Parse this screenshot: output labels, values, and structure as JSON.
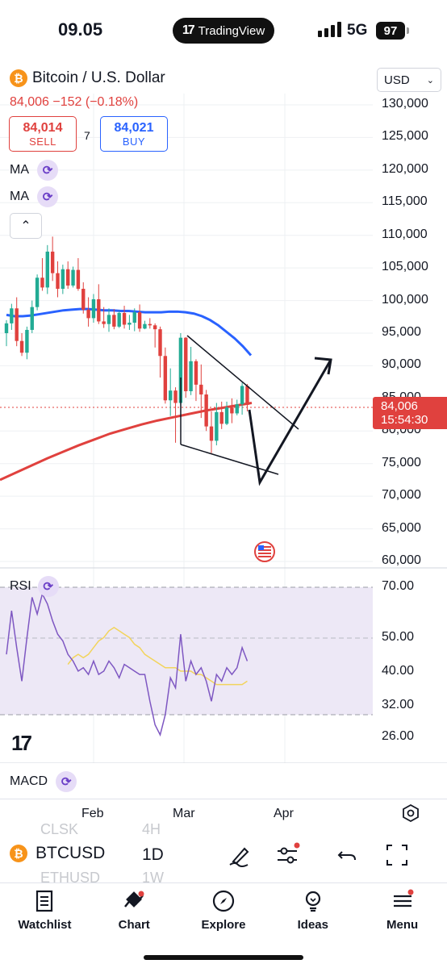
{
  "status": {
    "time": "09.05",
    "app": "TradingView",
    "network": "5G",
    "battery": "97"
  },
  "header": {
    "symbol_name": "Bitcoin / U.S. Dollar",
    "price_change": "84,006 −152 (−0.18%)",
    "sell_price": "84,014",
    "sell_label": "SELL",
    "spread": "7",
    "buy_price": "84,021",
    "buy_label": "BUY",
    "currency": "USD",
    "ma1": "MA",
    "ma2": "MA"
  },
  "price_axis": [
    "130,000",
    "125,000",
    "120,000",
    "115,000",
    "110,000",
    "105,000",
    "100,000",
    "95,000",
    "90,000",
    "85,000",
    "80,000",
    "75,000",
    "70,000",
    "65,000",
    "60,000"
  ],
  "last_price": {
    "value": "84,006",
    "countdown": "15:54:30"
  },
  "rsi": {
    "label": "RSI",
    "axis": [
      "70.00",
      "50.00",
      "40.00",
      "32.00",
      "26.00"
    ]
  },
  "macd": {
    "label": "MACD"
  },
  "time_axis": [
    "Feb",
    "Mar",
    "Apr"
  ],
  "toolbar": {
    "symbol": "BTCUSD",
    "timeframe": "1D",
    "ghost_top_symbol": "CLSK",
    "ghost_top_tf": "4H",
    "ghost_bottom_symbol": "ETHUSD",
    "ghost_bottom_tf": "1W"
  },
  "tabs": [
    {
      "label": "Watchlist",
      "icon": "watchlist-icon"
    },
    {
      "label": "Chart",
      "icon": "chart-icon"
    },
    {
      "label": "Explore",
      "icon": "compass-icon"
    },
    {
      "label": "Ideas",
      "icon": "lightbulb-icon"
    },
    {
      "label": "Menu",
      "icon": "menu-icon"
    }
  ],
  "colors": {
    "up": "#22ab94",
    "down": "#e0413e",
    "ma_fast": "#2962ff",
    "ma_slow": "#e0413e",
    "rsi": "#7e57c2",
    "rsi_ma": "#f2d45c"
  },
  "chart_data": {
    "type": "candlestick",
    "title": "Bitcoin / U.S. Dollar",
    "timeframe": "1D",
    "yrange": [
      60000,
      130000
    ],
    "candles": [
      [
        95000,
        97000,
        93000,
        96500
      ],
      [
        96500,
        99500,
        95500,
        98800
      ],
      [
        98800,
        100500,
        93000,
        93800
      ],
      [
        93800,
        95000,
        91500,
        92000
      ],
      [
        92000,
        96000,
        91000,
        95500
      ],
      [
        95500,
        100000,
        95000,
        99000
      ],
      [
        99000,
        104000,
        98500,
        103500
      ],
      [
        103500,
        106500,
        101500,
        102000
      ],
      [
        102000,
        108500,
        101000,
        107500
      ],
      [
        107500,
        109800,
        103000,
        104200
      ],
      [
        104200,
        106000,
        100500,
        101800
      ],
      [
        101800,
        105500,
        101000,
        104800
      ],
      [
        104800,
        106000,
        101800,
        102300
      ],
      [
        102300,
        105200,
        102000,
        104700
      ],
      [
        104700,
        106500,
        101500,
        101800
      ],
      [
        101800,
        102800,
        98000,
        98600
      ],
      [
        98600,
        100500,
        96000,
        97300
      ],
      [
        97300,
        101000,
        96600,
        100200
      ],
      [
        100200,
        102500,
        96400,
        96800
      ],
      [
        96800,
        99000,
        95800,
        96400
      ],
      [
        96400,
        98800,
        95200,
        97800
      ],
      [
        97800,
        98700,
        95600,
        96000
      ],
      [
        96000,
        98400,
        95800,
        98100
      ],
      [
        98100,
        99200,
        95700,
        96300
      ],
      [
        96300,
        97800,
        95500,
        96600
      ],
      [
        96600,
        98800,
        95300,
        98200
      ],
      [
        98200,
        99400,
        95200,
        95700
      ],
      [
        95700,
        96900,
        95600,
        96400
      ],
      [
        96400,
        97300,
        95700,
        96200
      ],
      [
        96200,
        96500,
        92800,
        95600
      ],
      [
        95600,
        96000,
        88200,
        91500
      ],
      [
        91500,
        92800,
        84200,
        84700
      ],
      [
        84700,
        89600,
        82300,
        86200
      ],
      [
        86200,
        86700,
        78200,
        84300
      ],
      [
        84300,
        95000,
        84000,
        94300
      ],
      [
        94300,
        94400,
        85100,
        86100
      ],
      [
        86100,
        92900,
        85500,
        90700
      ],
      [
        90700,
        91000,
        84600,
        87100
      ],
      [
        87100,
        90200,
        82000,
        85600
      ],
      [
        85600,
        86300,
        80000,
        80700
      ],
      [
        80700,
        83000,
        76600,
        78500
      ],
      [
        78500,
        84300,
        77800,
        82900
      ],
      [
        82900,
        84500,
        80300,
        81100
      ],
      [
        81100,
        84500,
        80900,
        83600
      ],
      [
        83600,
        85000,
        81200,
        82700
      ],
      [
        82700,
        84800,
        82400,
        84100
      ],
      [
        84100,
        87400,
        82500,
        86900
      ],
      [
        86900,
        87200,
        83000,
        84006
      ]
    ],
    "ma_fast_y": [
      97800,
      97600,
      97600,
      97700,
      97900,
      98100,
      98300,
      98500,
      98600,
      98700,
      98700,
      98600,
      98500,
      98500,
      98400,
      98400,
      98300,
      98200,
      98200,
      98200,
      98300,
      98300,
      98200,
      98000,
      97600,
      97000,
      96200,
      95200,
      94200,
      93000,
      91600
    ],
    "ma_slow_y": [
      72500,
      73600,
      74700,
      75800,
      76800,
      77800,
      78700,
      79600,
      80300,
      81000,
      81600,
      82100,
      82600,
      83100,
      83500,
      83900,
      84300
    ],
    "rsi": [
      50,
      63,
      52,
      42,
      55,
      67,
      62,
      68,
      65,
      60,
      56,
      54,
      50,
      48,
      45,
      46,
      44,
      48,
      44,
      45,
      48,
      46,
      43,
      47,
      46,
      45,
      44,
      44,
      36,
      29,
      26,
      32,
      43,
      40,
      56,
      42,
      48,
      44,
      46,
      42,
      36,
      44,
      42,
      46,
      44,
      46,
      52,
      48
    ],
    "rsi_ma": [
      47,
      49,
      50,
      49,
      50,
      52,
      54,
      55,
      57,
      58,
      57,
      56,
      55,
      53,
      52,
      50,
      49,
      48,
      47,
      46,
      46,
      46,
      45,
      45,
      45,
      44,
      44,
      43,
      42,
      41,
      41,
      41,
      41,
      41,
      41,
      42
    ]
  }
}
